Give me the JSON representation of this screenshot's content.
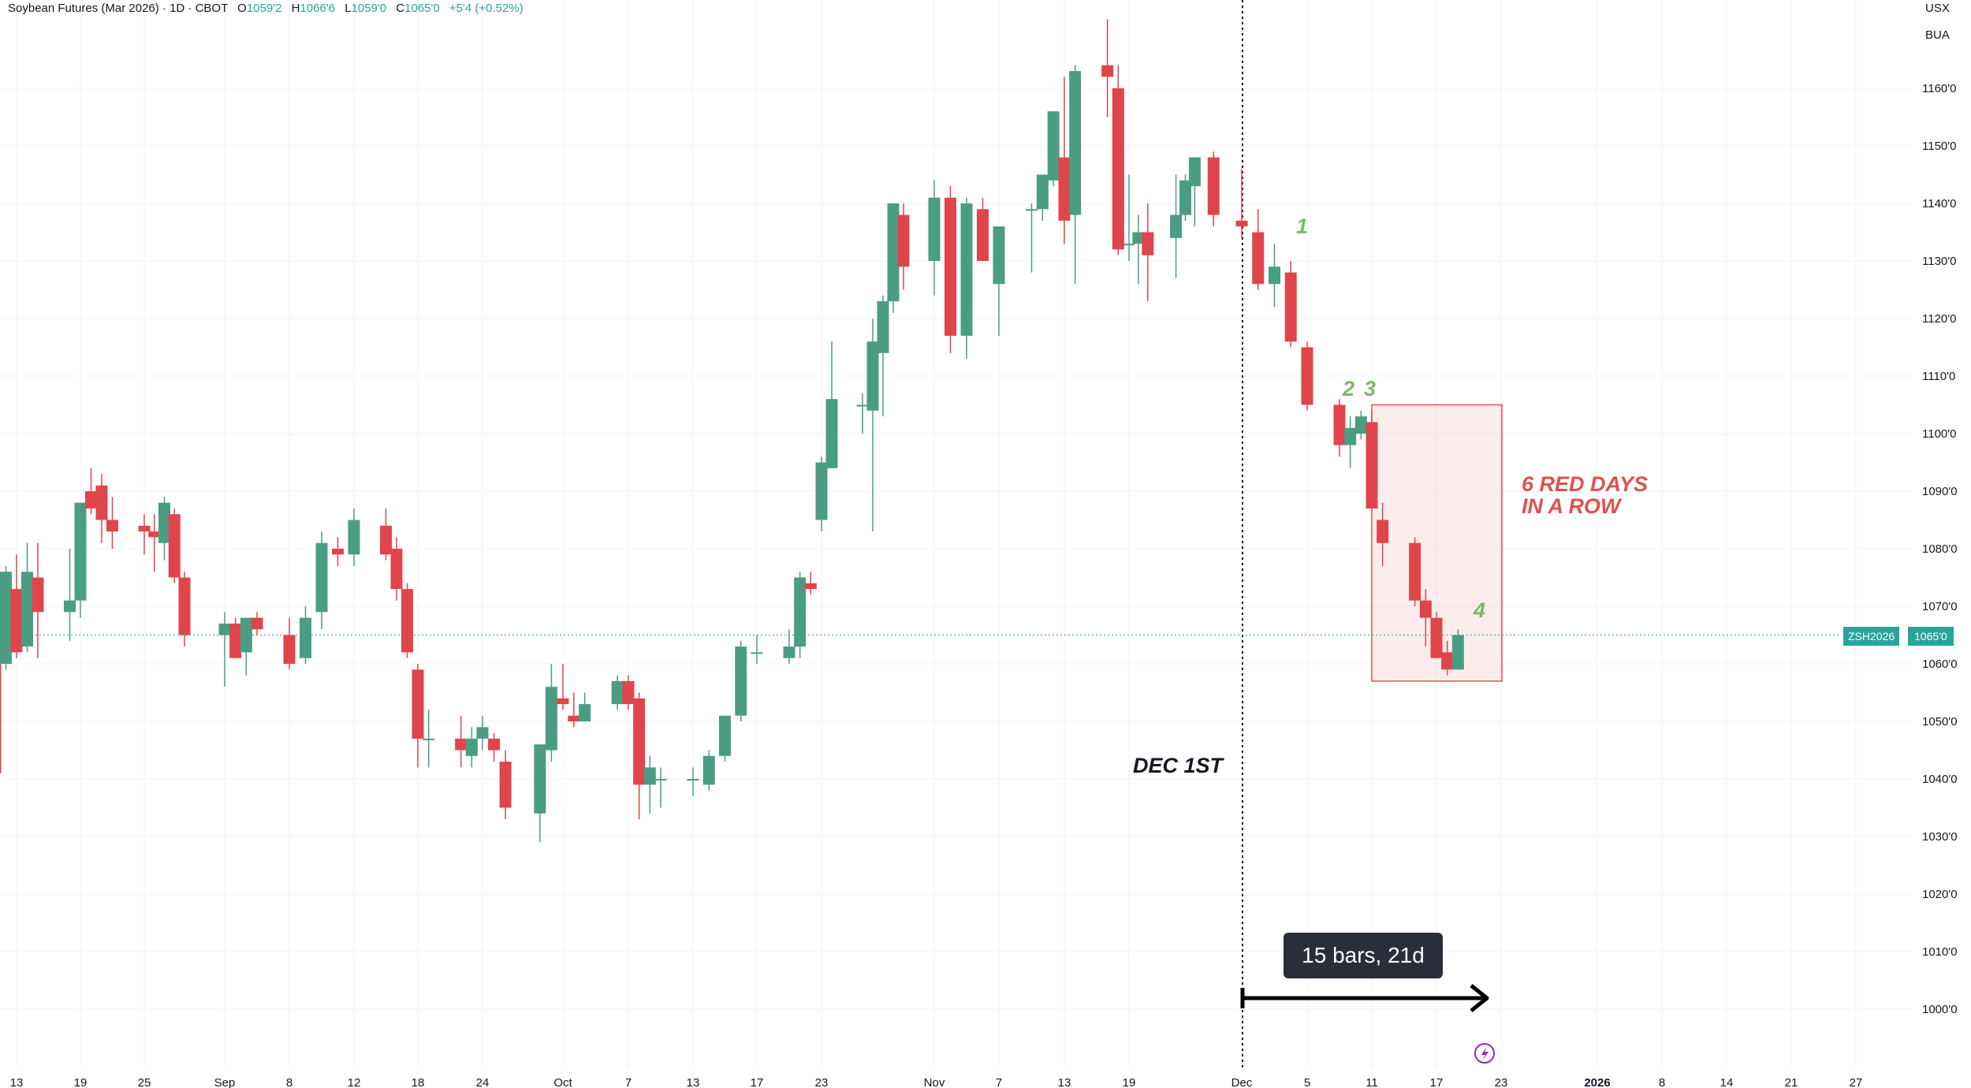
{
  "header": {
    "symbol": "Soybean Futures (Mar 2026) · 1D · CBOT",
    "open_label": "O",
    "open": "1059'2",
    "high_label": "H",
    "high": "1066'6",
    "low_label": "L",
    "low": "1059'0",
    "close_label": "C",
    "close": "1065'0",
    "change": "+5'4 (+0.52%)"
  },
  "scale": {
    "currency": "USX",
    "unit": "BUA"
  },
  "last_price": {
    "symbol": "ZSH2026",
    "price": "1065'0",
    "value": 1065
  },
  "measure": {
    "label": "15 bars, 21d"
  },
  "annotations": {
    "dec_label": "DEC 1ST",
    "red_days_line1": "6 RED DAYS",
    "red_days_line2": "IN A ROW",
    "n1": "1",
    "n2": "2",
    "n3": "3",
    "n4": "4"
  },
  "colors": {
    "up": "#4a9d83",
    "down": "#e0454c",
    "grid": "#f0f3fa",
    "axis_text": "#131722",
    "box": "#e05050"
  },
  "chart_data": {
    "type": "candlestick",
    "title": "Soybean Futures (Mar 2026)",
    "ylim": [
      995,
      1180
    ],
    "y_ticks": [
      1000,
      1010,
      1020,
      1030,
      1040,
      1050,
      1060,
      1070,
      1080,
      1090,
      1100,
      1110,
      1120,
      1130,
      1140,
      1150,
      1160
    ],
    "y_tick_labels": [
      "1000'0",
      "1010'0",
      "1020'0",
      "1030'0",
      "1040'0",
      "1050'0",
      "1060'0",
      "1070'0",
      "1080'0",
      "1090'0",
      "1100'0",
      "1110'0",
      "1120'0",
      "1130'0",
      "1140'0",
      "1150'0",
      "1160'0"
    ],
    "x_tick_labels": [
      {
        "label": "13",
        "date": "2025-08-13"
      },
      {
        "label": "19",
        "date": "2025-08-19"
      },
      {
        "label": "25",
        "date": "2025-08-25"
      },
      {
        "label": "Sep",
        "date": "2025-09-02"
      },
      {
        "label": "8",
        "date": "2025-09-08"
      },
      {
        "label": "12",
        "date": "2025-09-12"
      },
      {
        "label": "18",
        "date": "2025-09-18"
      },
      {
        "label": "24",
        "date": "2025-09-24"
      },
      {
        "label": "Oct",
        "date": "2025-10-01"
      },
      {
        "label": "7",
        "date": "2025-10-07"
      },
      {
        "label": "13",
        "date": "2025-10-13"
      },
      {
        "label": "17",
        "date": "2025-10-17"
      },
      {
        "label": "23",
        "date": "2025-10-23"
      },
      {
        "label": "Nov",
        "date": "2025-11-03"
      },
      {
        "label": "7",
        "date": "2025-11-07"
      },
      {
        "label": "13",
        "date": "2025-11-13"
      },
      {
        "label": "19",
        "date": "2025-11-19"
      },
      {
        "label": "Dec",
        "date": "2025-12-01"
      },
      {
        "label": "5",
        "date": "2025-12-05"
      },
      {
        "label": "11",
        "date": "2025-12-11"
      },
      {
        "label": "17",
        "date": "2025-12-17"
      },
      {
        "label": "23",
        "date": "2025-12-23"
      },
      {
        "label": "2026",
        "date": "2026-01-02"
      },
      {
        "label": "8",
        "date": "2026-01-08"
      },
      {
        "label": "14",
        "date": "2026-01-14"
      },
      {
        "label": "21",
        "date": "2026-01-21"
      },
      {
        "label": "27",
        "date": "2026-01-27"
      }
    ],
    "candles": [
      {
        "date": "2025-08-11",
        "o": 1064,
        "h": 1068,
        "l": 1040,
        "c": 1041
      },
      {
        "date": "2025-08-12",
        "o": 1060,
        "h": 1077,
        "l": 1059,
        "c": 1076
      },
      {
        "date": "2025-08-13",
        "o": 1073,
        "h": 1079,
        "l": 1061,
        "c": 1062
      },
      {
        "date": "2025-08-14",
        "o": 1063,
        "h": 1081,
        "l": 1062,
        "c": 1076
      },
      {
        "date": "2025-08-15",
        "o": 1075,
        "h": 1081,
        "l": 1061,
        "c": 1069
      },
      {
        "date": "2025-08-18",
        "o": 1069,
        "h": 1080,
        "l": 1064,
        "c": 1071
      },
      {
        "date": "2025-08-19",
        "o": 1071,
        "h": 1088,
        "l": 1068,
        "c": 1088
      },
      {
        "date": "2025-08-20",
        "o": 1090,
        "h": 1094,
        "l": 1086,
        "c": 1087
      },
      {
        "date": "2025-08-21",
        "o": 1091,
        "h": 1093,
        "l": 1081,
        "c": 1085
      },
      {
        "date": "2025-08-22",
        "o": 1085,
        "h": 1089,
        "l": 1080,
        "c": 1083
      },
      {
        "date": "2025-08-25",
        "o": 1084,
        "h": 1086,
        "l": 1079,
        "c": 1083
      },
      {
        "date": "2025-08-26",
        "o": 1083,
        "h": 1086,
        "l": 1076,
        "c": 1082
      },
      {
        "date": "2025-08-27",
        "o": 1081,
        "h": 1089,
        "l": 1078,
        "c": 1088
      },
      {
        "date": "2025-08-28",
        "o": 1086,
        "h": 1087,
        "l": 1074,
        "c": 1075
      },
      {
        "date": "2025-08-29",
        "o": 1075,
        "h": 1076,
        "l": 1063,
        "c": 1065
      },
      {
        "date": "2025-09-02",
        "o": 1065,
        "h": 1069,
        "l": 1056,
        "c": 1067
      },
      {
        "date": "2025-09-03",
        "o": 1067,
        "h": 1068,
        "l": 1061,
        "c": 1061
      },
      {
        "date": "2025-09-04",
        "o": 1062,
        "h": 1068,
        "l": 1058,
        "c": 1068
      },
      {
        "date": "2025-09-05",
        "o": 1068,
        "h": 1069,
        "l": 1065,
        "c": 1066
      },
      {
        "date": "2025-09-08",
        "o": 1065,
        "h": 1068,
        "l": 1059,
        "c": 1060
      },
      {
        "date": "2025-09-09",
        "o": 1061,
        "h": 1070,
        "l": 1060,
        "c": 1068
      },
      {
        "date": "2025-09-10",
        "o": 1069,
        "h": 1083,
        "l": 1066,
        "c": 1081
      },
      {
        "date": "2025-09-11",
        "o": 1080,
        "h": 1082,
        "l": 1077,
        "c": 1079
      },
      {
        "date": "2025-09-12",
        "o": 1079,
        "h": 1087,
        "l": 1077,
        "c": 1085
      },
      {
        "date": "2025-09-15",
        "o": 1084,
        "h": 1087,
        "l": 1078,
        "c": 1079
      },
      {
        "date": "2025-09-16",
        "o": 1080,
        "h": 1082,
        "l": 1071,
        "c": 1073
      },
      {
        "date": "2025-09-17",
        "o": 1073,
        "h": 1074,
        "l": 1061,
        "c": 1062
      },
      {
        "date": "2025-09-18",
        "o": 1059,
        "h": 1060,
        "l": 1042,
        "c": 1047
      },
      {
        "date": "2025-09-19",
        "o": 1047,
        "h": 1052,
        "l": 1042,
        "c": 1047
      },
      {
        "date": "2025-09-22",
        "o": 1047,
        "h": 1051,
        "l": 1042,
        "c": 1045
      },
      {
        "date": "2025-09-23",
        "o": 1044,
        "h": 1049,
        "l": 1042,
        "c": 1047
      },
      {
        "date": "2025-09-24",
        "o": 1047,
        "h": 1051,
        "l": 1045,
        "c": 1049
      },
      {
        "date": "2025-09-25",
        "o": 1047,
        "h": 1048,
        "l": 1043,
        "c": 1045
      },
      {
        "date": "2025-09-26",
        "o": 1043,
        "h": 1045,
        "l": 1033,
        "c": 1035
      },
      {
        "date": "2025-09-29",
        "o": 1034,
        "h": 1046,
        "l": 1029,
        "c": 1046
      },
      {
        "date": "2025-09-30",
        "o": 1045,
        "h": 1060,
        "l": 1043,
        "c": 1056
      },
      {
        "date": "2025-10-01",
        "o": 1054,
        "h": 1060,
        "l": 1052,
        "c": 1053
      },
      {
        "date": "2025-10-02",
        "o": 1051,
        "h": 1055,
        "l": 1049,
        "c": 1050
      },
      {
        "date": "2025-10-03",
        "o": 1050,
        "h": 1055,
        "l": 1050,
        "c": 1053
      },
      {
        "date": "2025-10-06",
        "o": 1053,
        "h": 1058,
        "l": 1052,
        "c": 1057
      },
      {
        "date": "2025-10-07",
        "o": 1057,
        "h": 1058,
        "l": 1052,
        "c": 1053
      },
      {
        "date": "2025-10-08",
        "o": 1054,
        "h": 1055,
        "l": 1033,
        "c": 1039
      },
      {
        "date": "2025-10-09",
        "o": 1039,
        "h": 1044,
        "l": 1034,
        "c": 1042
      },
      {
        "date": "2025-10-10",
        "o": 1040,
        "h": 1042,
        "l": 1035,
        "c": 1040
      },
      {
        "date": "2025-10-13",
        "o": 1040,
        "h": 1042,
        "l": 1037,
        "c": 1040
      },
      {
        "date": "2025-10-14",
        "o": 1039,
        "h": 1045,
        "l": 1038,
        "c": 1044
      },
      {
        "date": "2025-10-15",
        "o": 1044,
        "h": 1051,
        "l": 1043,
        "c": 1051
      },
      {
        "date": "2025-10-16",
        "o": 1051,
        "h": 1064,
        "l": 1050,
        "c": 1063
      },
      {
        "date": "2025-10-17",
        "o": 1062,
        "h": 1065,
        "l": 1060,
        "c": 1062
      },
      {
        "date": "2025-10-20",
        "o": 1061,
        "h": 1066,
        "l": 1060,
        "c": 1063
      },
      {
        "date": "2025-10-21",
        "o": 1063,
        "h": 1076,
        "l": 1061,
        "c": 1075
      },
      {
        "date": "2025-10-22",
        "o": 1074,
        "h": 1076,
        "l": 1072,
        "c": 1073
      },
      {
        "date": "2025-10-23",
        "o": 1085,
        "h": 1096,
        "l": 1083,
        "c": 1095
      },
      {
        "date": "2025-10-24",
        "o": 1094,
        "h": 1116,
        "l": 1094,
        "c": 1106
      },
      {
        "date": "2025-10-27",
        "o": 1105,
        "h": 1107,
        "l": 1100,
        "c": 1105
      },
      {
        "date": "2025-10-28",
        "o": 1104,
        "h": 1120,
        "l": 1083,
        "c": 1116
      },
      {
        "date": "2025-10-29",
        "o": 1114,
        "h": 1124,
        "l": 1103,
        "c": 1123
      },
      {
        "date": "2025-10-30",
        "o": 1123,
        "h": 1140,
        "l": 1121,
        "c": 1140
      },
      {
        "date": "2025-10-31",
        "o": 1138,
        "h": 1140,
        "l": 1125,
        "c": 1129
      },
      {
        "date": "2025-11-03",
        "o": 1130,
        "h": 1144,
        "l": 1124,
        "c": 1141
      },
      {
        "date": "2025-11-04",
        "o": 1141,
        "h": 1143,
        "l": 1114,
        "c": 1117
      },
      {
        "date": "2025-11-05",
        "o": 1117,
        "h": 1141,
        "l": 1113,
        "c": 1140
      },
      {
        "date": "2025-11-06",
        "o": 1139,
        "h": 1141,
        "l": 1130,
        "c": 1130
      },
      {
        "date": "2025-11-07",
        "o": 1126,
        "h": 1136,
        "l": 1117,
        "c": 1136
      },
      {
        "date": "2025-11-10",
        "o": 1139,
        "h": 1140,
        "l": 1128,
        "c": 1139
      },
      {
        "date": "2025-11-11",
        "o": 1139,
        "h": 1145,
        "l": 1137,
        "c": 1145
      },
      {
        "date": "2025-11-12",
        "o": 1144,
        "h": 1156,
        "l": 1143,
        "c": 1156
      },
      {
        "date": "2025-11-13",
        "o": 1148,
        "h": 1162,
        "l": 1133,
        "c": 1137
      },
      {
        "date": "2025-11-14",
        "o": 1138,
        "h": 1164,
        "l": 1126,
        "c": 1163
      },
      {
        "date": "2025-11-17",
        "o": 1164,
        "h": 1172,
        "l": 1155,
        "c": 1162
      },
      {
        "date": "2025-11-18",
        "o": 1160,
        "h": 1164,
        "l": 1131,
        "c": 1132
      },
      {
        "date": "2025-11-19",
        "o": 1133,
        "h": 1145,
        "l": 1130,
        "c": 1133
      },
      {
        "date": "2025-11-20",
        "o": 1133,
        "h": 1138,
        "l": 1126,
        "c": 1135
      },
      {
        "date": "2025-11-21",
        "o": 1135,
        "h": 1140,
        "l": 1123,
        "c": 1131
      },
      {
        "date": "2025-11-24",
        "o": 1134,
        "h": 1145,
        "l": 1127,
        "c": 1138
      },
      {
        "date": "2025-11-25",
        "o": 1138,
        "h": 1145,
        "l": 1137,
        "c": 1144
      },
      {
        "date": "2025-11-26",
        "o": 1143,
        "h": 1148,
        "l": 1136,
        "c": 1148
      },
      {
        "date": "2025-11-28",
        "o": 1148,
        "h": 1149,
        "l": 1136,
        "c": 1138
      },
      {
        "date": "2025-12-01",
        "o": 1137,
        "h": 1146,
        "l": 1134,
        "c": 1136
      },
      {
        "date": "2025-12-02",
        "o": 1135,
        "h": 1139,
        "l": 1125,
        "c": 1126
      },
      {
        "date": "2025-12-03",
        "o": 1126,
        "h": 1133,
        "l": 1122,
        "c": 1129
      },
      {
        "date": "2025-12-04",
        "o": 1128,
        "h": 1130,
        "l": 1115,
        "c": 1116
      },
      {
        "date": "2025-12-05",
        "o": 1115,
        "h": 1116,
        "l": 1104,
        "c": 1105
      },
      {
        "date": "2025-12-08",
        "o": 1105,
        "h": 1106,
        "l": 1096,
        "c": 1098
      },
      {
        "date": "2025-12-09",
        "o": 1098,
        "h": 1103,
        "l": 1094,
        "c": 1101
      },
      {
        "date": "2025-12-10",
        "o": 1100,
        "h": 1104,
        "l": 1099,
        "c": 1103
      },
      {
        "date": "2025-12-11",
        "o": 1102,
        "h": 1104,
        "l": 1087,
        "c": 1087
      },
      {
        "date": "2025-12-12",
        "o": 1085,
        "h": 1088,
        "l": 1077,
        "c": 1081
      },
      {
        "date": "2025-12-15",
        "o": 1081,
        "h": 1082,
        "l": 1070,
        "c": 1071
      },
      {
        "date": "2025-12-16",
        "o": 1071,
        "h": 1073,
        "l": 1063,
        "c": 1068
      },
      {
        "date": "2025-12-17",
        "o": 1068,
        "h": 1069,
        "l": 1061,
        "c": 1061
      },
      {
        "date": "2025-12-18",
        "o": 1062,
        "h": 1064,
        "l": 1058,
        "c": 1059
      },
      {
        "date": "2025-12-19",
        "o": 1059,
        "h": 1066,
        "l": 1059,
        "c": 1065
      }
    ]
  }
}
